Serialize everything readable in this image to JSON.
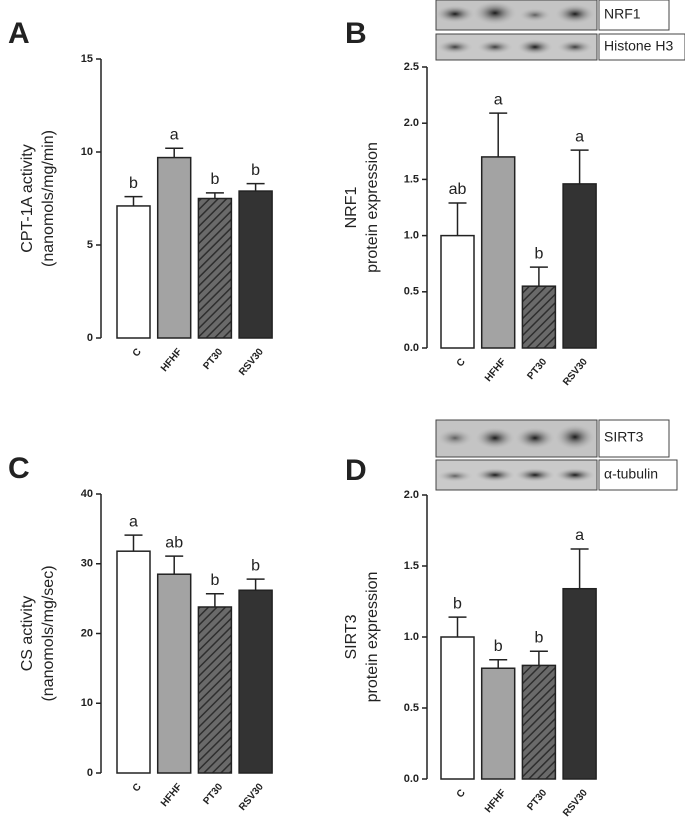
{
  "chart_data": [
    {
      "type": "bar",
      "panel": "A",
      "ylabel": [
        "CPT-1A activity",
        "(nanomols/mg/min)"
      ],
      "categories": [
        "C",
        "HFHF",
        "PT30",
        "RSV30"
      ],
      "values": [
        7.1,
        9.7,
        7.5,
        7.9
      ],
      "errors": [
        0.5,
        0.5,
        0.3,
        0.4
      ],
      "letters": [
        "b",
        "a",
        "b",
        "b"
      ],
      "colors": [
        "#ffffff",
        "#a3a3a3",
        "#5a5a5a",
        "#333333"
      ],
      "hatch": [
        false,
        false,
        true,
        false
      ],
      "ylim": [
        0,
        15
      ],
      "yticks": [
        0,
        5,
        10,
        15
      ]
    },
    {
      "type": "bar",
      "panel": "B",
      "ylabel": [
        "NRF1",
        "protein expression"
      ],
      "blot_labels": [
        "NRF1",
        "Histone H3"
      ],
      "categories": [
        "C",
        "HFHF",
        "PT30",
        "RSV30"
      ],
      "values": [
        1.0,
        1.7,
        0.55,
        1.46
      ],
      "errors": [
        0.29,
        0.39,
        0.17,
        0.3
      ],
      "letters": [
        "ab",
        "a",
        "b",
        "a"
      ],
      "colors": [
        "#ffffff",
        "#a3a3a3",
        "#5a5a5a",
        "#333333"
      ],
      "hatch": [
        false,
        false,
        true,
        false
      ],
      "ylim": [
        0,
        2.5
      ],
      "yticks": [
        {
          "value": 0,
          "label": "0.0"
        },
        0.5,
        {
          "value": 1,
          "label": "1.0"
        },
        1.5,
        {
          "value": 2,
          "label": "2.0"
        },
        2.5
      ]
    },
    {
      "type": "bar",
      "panel": "C",
      "ylabel": [
        "CS activity",
        "(nanomols/mg/sec)"
      ],
      "categories": [
        "C",
        "HFHF",
        "PT30",
        "RSV30"
      ],
      "values": [
        31.8,
        28.5,
        23.8,
        26.2
      ],
      "errors": [
        2.3,
        2.6,
        1.9,
        1.6
      ],
      "letters": [
        "a",
        "ab",
        "b",
        "b"
      ],
      "colors": [
        "#ffffff",
        "#a3a3a3",
        "#5a5a5a",
        "#333333"
      ],
      "hatch": [
        false,
        false,
        true,
        false
      ],
      "ylim": [
        0,
        40
      ],
      "yticks": [
        0,
        10,
        20,
        30,
        40
      ]
    },
    {
      "type": "bar",
      "panel": "D",
      "ylabel": [
        "SIRT3",
        "protein expression"
      ],
      "blot_labels": [
        "SIRT3",
        "α-tubulin"
      ],
      "categories": [
        "C",
        "HFHF",
        "PT30",
        "RSV30"
      ],
      "values": [
        1.0,
        0.78,
        0.8,
        1.34
      ],
      "errors": [
        0.14,
        0.06,
        0.1,
        0.28
      ],
      "letters": [
        "b",
        "b",
        "b",
        "a"
      ],
      "colors": [
        "#ffffff",
        "#a3a3a3",
        "#5a5a5a",
        "#333333"
      ],
      "hatch": [
        false,
        false,
        true,
        false
      ],
      "ylim": [
        0,
        2
      ],
      "yticks": [
        {
          "value": 0,
          "label": "0.0"
        },
        0.5,
        {
          "value": 1,
          "label": "1.0"
        },
        1.5,
        {
          "value": 2,
          "label": "2.0"
        }
      ]
    }
  ]
}
